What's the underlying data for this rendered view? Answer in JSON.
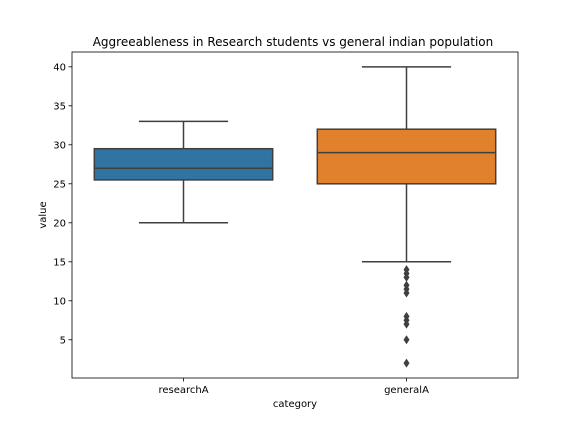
{
  "chart_data": {
    "type": "box",
    "title": "Aggreeableness in Research students vs general indian population",
    "xlabel": "category",
    "ylabel": "value",
    "ylim": [
      0.1,
      41.9
    ],
    "yticks": [
      5,
      10,
      15,
      20,
      25,
      30,
      35,
      40
    ],
    "grid": false,
    "categories": [
      "researchA",
      "generalA"
    ],
    "boxes": [
      {
        "category": "researchA",
        "color": "#3274a1",
        "whisker_low": 20,
        "q1": 25.5,
        "median": 27,
        "q3": 29.5,
        "whisker_high": 33,
        "outliers": []
      },
      {
        "category": "generalA",
        "color": "#e1812c",
        "whisker_low": 15,
        "q1": 25,
        "median": 29,
        "q3": 32,
        "whisker_high": 40,
        "outliers": [
          14,
          13.5,
          13,
          12,
          11.5,
          11,
          8,
          7.5,
          7,
          5,
          2
        ]
      }
    ]
  }
}
